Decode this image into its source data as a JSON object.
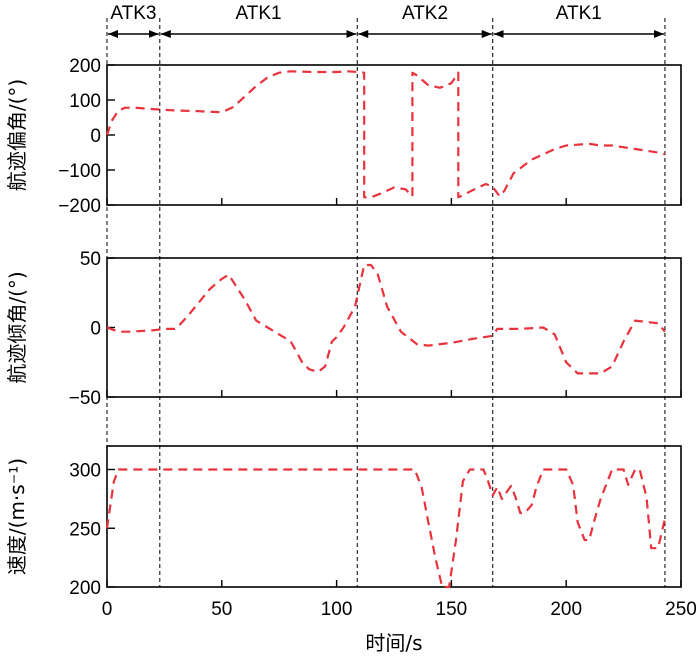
{
  "chart_data": {
    "type": "line",
    "xlabel": "时间/s",
    "xlim": [
      0,
      250
    ],
    "xticks": [
      0,
      50,
      100,
      150,
      200,
      250
    ],
    "line_color": "#e8323c",
    "phase_lines": [
      0,
      23,
      109,
      168,
      243
    ],
    "phases": [
      {
        "label": "ATK3",
        "start": 0,
        "end": 23
      },
      {
        "label": "ATK1",
        "start": 23,
        "end": 109
      },
      {
        "label": "ATK2",
        "start": 109,
        "end": 168
      },
      {
        "label": "ATK1",
        "start": 168,
        "end": 243
      }
    ],
    "panels": [
      {
        "ylabel": "航迹偏角/(°)",
        "ylim": [
          -200,
          200
        ],
        "yticks": [
          -200,
          -100,
          0,
          100,
          200
        ],
        "series": [
          {
            "x": [
              0,
              2,
              5,
              8,
              12,
              20,
              30,
              40,
              50,
              55,
              60,
              65,
              70,
              75,
              80,
              90,
              100,
              105,
              109,
              112,
              112,
              115,
              120,
              125,
              130,
              133,
              133,
              135,
              140,
              145,
              150,
              153,
              153,
              155,
              160,
              165,
              168,
              171,
              173,
              177,
              185,
              195,
              200,
              210,
              215,
              220,
              230,
              240,
              243
            ],
            "y": [
              0,
              40,
              70,
              78,
              78,
              74,
              70,
              68,
              65,
              80,
              110,
              140,
              165,
              178,
              182,
              180,
              180,
              182,
              180,
              178,
              -178,
              -178,
              -165,
              -150,
              -155,
              -175,
              178,
              170,
              142,
              135,
              148,
              178,
              -178,
              -172,
              -155,
              -140,
              -148,
              -175,
              -160,
              -110,
              -70,
              -40,
              -30,
              -25,
              -30,
              -30,
              -40,
              -50,
              -55
            ]
          }
        ]
      },
      {
        "ylabel": "航迹倾角/(°)",
        "ylim": [
          -50,
          50
        ],
        "yticks": [
          -50,
          0,
          50
        ],
        "series": [
          {
            "x": [
              0,
              5,
              10,
              20,
              25,
              30,
              35,
              40,
              45,
              50,
              53,
              60,
              65,
              70,
              80,
              85,
              88,
              92,
              95,
              98,
              100,
              103,
              108,
              112,
              115,
              118,
              122,
              128,
              135,
              140,
              150,
              160,
              168,
              170,
              173,
              180,
              190,
              195,
              200,
              205,
              210,
              215,
              220,
              225,
              230,
              240,
              243
            ],
            "y": [
              0,
              -3,
              -3,
              -2,
              -1,
              -1,
              8,
              18,
              28,
              35,
              38,
              20,
              5,
              0,
              -10,
              -25,
              -30,
              -32,
              -28,
              -10,
              -7,
              0,
              15,
              45,
              45,
              38,
              15,
              -3,
              -12,
              -13,
              -11,
              -8,
              -6,
              -1,
              -1,
              -1,
              0,
              -5,
              -25,
              -33,
              -33,
              -33,
              -28,
              -10,
              5,
              3,
              -3
            ]
          }
        ]
      },
      {
        "ylabel": "速度/(m·s⁻¹)",
        "ylim": [
          200,
          320
        ],
        "yticks": [
          200,
          250,
          300
        ],
        "series": [
          {
            "x": [
              0,
              3,
              5,
              10,
              50,
              100,
              130,
              134,
              137,
              140,
              143,
              146,
              149,
              152,
              155,
              158,
              161,
              164,
              166,
              168,
              170,
              172,
              173,
              176,
              178,
              180,
              182,
              185,
              187,
              190,
              195,
              200,
              203,
              205,
              208,
              210,
              212,
              215,
              218,
              220,
              222,
              225,
              227,
              230,
              232,
              235,
              237,
              240,
              243
            ],
            "y": [
              250,
              290,
              300,
              300,
              300,
              300,
              300,
              300,
              285,
              255,
              225,
              200,
              200,
              240,
              290,
              300,
              300,
              300,
              290,
              278,
              285,
              275,
              278,
              286,
              276,
              263,
              263,
              270,
              285,
              300,
              300,
              300,
              287,
              255,
              240,
              240,
              255,
              275,
              290,
              300,
              300,
              300,
              287,
              300,
              300,
              276,
              233,
              233,
              258
            ]
          }
        ]
      }
    ]
  }
}
